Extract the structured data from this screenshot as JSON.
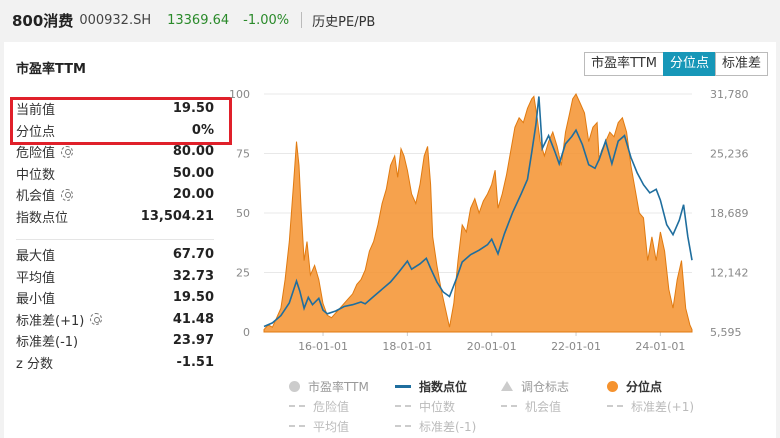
{
  "header": {
    "index_name": "800消费",
    "index_code": "000932.SH",
    "price": "13369.64",
    "change": "-1.00%",
    "history_link": "历史PE/PB"
  },
  "card": {
    "title": "市盈率TTM",
    "tabs": [
      {
        "label": "市盈率TTM",
        "active": false
      },
      {
        "label": "分位点",
        "active": true
      },
      {
        "label": "标准差",
        "active": false
      }
    ]
  },
  "stats": {
    "group1": [
      {
        "label": "当前值",
        "value": "19.50",
        "icon": ""
      },
      {
        "label": "分位点",
        "value": "0%",
        "icon": ""
      },
      {
        "label": "危险值",
        "value": "80.00",
        "icon": "gear-icon"
      },
      {
        "label": "中位数",
        "value": "50.00",
        "icon": ""
      },
      {
        "label": "机会值",
        "value": "20.00",
        "icon": "gear-icon"
      },
      {
        "label": "指数点位",
        "value": "13,504.21",
        "icon": ""
      }
    ],
    "group2": [
      {
        "label": "最大值",
        "value": "67.70",
        "icon": ""
      },
      {
        "label": "平均值",
        "value": "32.73",
        "icon": ""
      },
      {
        "label": "最小值",
        "value": "19.50",
        "icon": ""
      },
      {
        "label": "标准差(+1)",
        "value": "41.48",
        "icon": "gear-icon"
      },
      {
        "label": "标准差(-1)",
        "value": "23.97",
        "icon": ""
      },
      {
        "label": "z 分数",
        "value": "-1.51",
        "icon": ""
      }
    ]
  },
  "chart_data": {
    "type": "area",
    "x_ticks": [
      "16-01-01",
      "18-01-01",
      "20-01-01",
      "22-01-01",
      "24-01-01"
    ],
    "x_range": [
      2014.6,
      2024.75
    ],
    "y_left_ticks": [
      "0",
      "25",
      "50",
      "75",
      "100"
    ],
    "y_left_range": [
      0,
      100
    ],
    "y_right_ticks": [
      "5,595",
      "12,142",
      "18,689",
      "25,236",
      "31,780"
    ],
    "y_right_range": [
      5595,
      31780
    ],
    "grid": true,
    "series": [
      {
        "name": "分位点",
        "axis": "left",
        "style": "area",
        "color": "#f5922e",
        "points": [
          [
            2014.6,
            1
          ],
          [
            2014.7,
            3
          ],
          [
            2014.8,
            2
          ],
          [
            2014.9,
            6
          ],
          [
            2015.0,
            10
          ],
          [
            2015.1,
            22
          ],
          [
            2015.2,
            38
          ],
          [
            2015.3,
            62
          ],
          [
            2015.37,
            80
          ],
          [
            2015.43,
            70
          ],
          [
            2015.48,
            52
          ],
          [
            2015.55,
            30
          ],
          [
            2015.62,
            38
          ],
          [
            2015.7,
            24
          ],
          [
            2015.8,
            28
          ],
          [
            2015.9,
            22
          ],
          [
            2016.0,
            12
          ],
          [
            2016.1,
            7
          ],
          [
            2016.2,
            6
          ],
          [
            2016.3,
            8
          ],
          [
            2016.4,
            10
          ],
          [
            2016.5,
            12
          ],
          [
            2016.6,
            14
          ],
          [
            2016.7,
            16
          ],
          [
            2016.8,
            20
          ],
          [
            2016.9,
            22
          ],
          [
            2017.0,
            26
          ],
          [
            2017.1,
            34
          ],
          [
            2017.2,
            38
          ],
          [
            2017.3,
            45
          ],
          [
            2017.4,
            54
          ],
          [
            2017.5,
            60
          ],
          [
            2017.6,
            70
          ],
          [
            2017.7,
            74
          ],
          [
            2017.77,
            65
          ],
          [
            2017.85,
            77
          ],
          [
            2017.92,
            74
          ],
          [
            2018.0,
            68
          ],
          [
            2018.1,
            58
          ],
          [
            2018.2,
            54
          ],
          [
            2018.3,
            62
          ],
          [
            2018.4,
            74
          ],
          [
            2018.48,
            78
          ],
          [
            2018.55,
            62
          ],
          [
            2018.6,
            40
          ],
          [
            2018.7,
            28
          ],
          [
            2018.8,
            18
          ],
          [
            2018.9,
            10
          ],
          [
            2019.0,
            2
          ],
          [
            2019.1,
            12
          ],
          [
            2019.2,
            30
          ],
          [
            2019.3,
            45
          ],
          [
            2019.4,
            42
          ],
          [
            2019.5,
            52
          ],
          [
            2019.6,
            56
          ],
          [
            2019.7,
            50
          ],
          [
            2019.8,
            55
          ],
          [
            2019.9,
            58
          ],
          [
            2020.0,
            62
          ],
          [
            2020.08,
            68
          ],
          [
            2020.15,
            52
          ],
          [
            2020.25,
            58
          ],
          [
            2020.35,
            66
          ],
          [
            2020.45,
            76
          ],
          [
            2020.55,
            86
          ],
          [
            2020.65,
            90
          ],
          [
            2020.75,
            88
          ],
          [
            2020.85,
            94
          ],
          [
            2020.95,
            98
          ],
          [
            2021.0,
            99
          ],
          [
            2021.08,
            90
          ],
          [
            2021.15,
            80
          ],
          [
            2021.25,
            74
          ],
          [
            2021.35,
            80
          ],
          [
            2021.45,
            84
          ],
          [
            2021.55,
            78
          ],
          [
            2021.65,
            70
          ],
          [
            2021.75,
            84
          ],
          [
            2021.85,
            92
          ],
          [
            2021.92,
            98
          ],
          [
            2022.0,
            100
          ],
          [
            2022.1,
            96
          ],
          [
            2022.2,
            92
          ],
          [
            2022.3,
            80
          ],
          [
            2022.4,
            86
          ],
          [
            2022.5,
            88
          ],
          [
            2022.55,
            72
          ],
          [
            2022.6,
            76
          ],
          [
            2022.7,
            80
          ],
          [
            2022.8,
            84
          ],
          [
            2022.9,
            82
          ],
          [
            2023.0,
            88
          ],
          [
            2023.1,
            90
          ],
          [
            2023.2,
            84
          ],
          [
            2023.3,
            70
          ],
          [
            2023.4,
            60
          ],
          [
            2023.5,
            50
          ],
          [
            2023.6,
            48
          ],
          [
            2023.7,
            30
          ],
          [
            2023.8,
            40
          ],
          [
            2023.9,
            30
          ],
          [
            2024.0,
            42
          ],
          [
            2024.1,
            34
          ],
          [
            2024.2,
            18
          ],
          [
            2024.3,
            10
          ],
          [
            2024.4,
            22
          ],
          [
            2024.5,
            30
          ],
          [
            2024.6,
            10
          ],
          [
            2024.7,
            3
          ],
          [
            2024.75,
            1
          ]
        ]
      },
      {
        "name": "指数点位",
        "axis": "right",
        "style": "line",
        "color": "#1f6e9e",
        "points": [
          [
            2014.6,
            6200
          ],
          [
            2014.8,
            6600
          ],
          [
            2015.0,
            7400
          ],
          [
            2015.2,
            8800
          ],
          [
            2015.37,
            11200
          ],
          [
            2015.45,
            10100
          ],
          [
            2015.55,
            8200
          ],
          [
            2015.65,
            9400
          ],
          [
            2015.75,
            8600
          ],
          [
            2015.9,
            9300
          ],
          [
            2016.0,
            8000
          ],
          [
            2016.1,
            7600
          ],
          [
            2016.3,
            7900
          ],
          [
            2016.5,
            8400
          ],
          [
            2016.7,
            8600
          ],
          [
            2016.9,
            8900
          ],
          [
            2017.0,
            8700
          ],
          [
            2017.2,
            9500
          ],
          [
            2017.4,
            10300
          ],
          [
            2017.6,
            11100
          ],
          [
            2017.8,
            12200
          ],
          [
            2018.0,
            13400
          ],
          [
            2018.1,
            12500
          ],
          [
            2018.3,
            13100
          ],
          [
            2018.45,
            13700
          ],
          [
            2018.55,
            12600
          ],
          [
            2018.7,
            11100
          ],
          [
            2018.85,
            10000
          ],
          [
            2019.0,
            9500
          ],
          [
            2019.15,
            11300
          ],
          [
            2019.3,
            13300
          ],
          [
            2019.5,
            14100
          ],
          [
            2019.7,
            14600
          ],
          [
            2019.9,
            15200
          ],
          [
            2020.0,
            15800
          ],
          [
            2020.15,
            14200
          ],
          [
            2020.3,
            16400
          ],
          [
            2020.5,
            18800
          ],
          [
            2020.7,
            20800
          ],
          [
            2020.85,
            22400
          ],
          [
            2020.95,
            25400
          ],
          [
            2021.05,
            28500
          ],
          [
            2021.12,
            31500
          ],
          [
            2021.2,
            25800
          ],
          [
            2021.35,
            27200
          ],
          [
            2021.5,
            25400
          ],
          [
            2021.6,
            24100
          ],
          [
            2021.75,
            26300
          ],
          [
            2021.9,
            27100
          ],
          [
            2022.0,
            27800
          ],
          [
            2022.15,
            26200
          ],
          [
            2022.3,
            24000
          ],
          [
            2022.45,
            23600
          ],
          [
            2022.55,
            24600
          ],
          [
            2022.7,
            26600
          ],
          [
            2022.85,
            24100
          ],
          [
            2023.0,
            26600
          ],
          [
            2023.15,
            27200
          ],
          [
            2023.3,
            24800
          ],
          [
            2023.45,
            23100
          ],
          [
            2023.6,
            21800
          ],
          [
            2023.75,
            20900
          ],
          [
            2023.9,
            21300
          ],
          [
            2024.0,
            20100
          ],
          [
            2024.15,
            17400
          ],
          [
            2024.3,
            16300
          ],
          [
            2024.45,
            17900
          ],
          [
            2024.55,
            19600
          ],
          [
            2024.65,
            16100
          ],
          [
            2024.75,
            13500
          ]
        ]
      }
    ]
  },
  "legend": [
    [
      {
        "label": "市盈率TTM",
        "symbol": "dot",
        "color": "#cccccc",
        "state": "off"
      },
      {
        "label": "指数点位",
        "symbol": "line",
        "color": "#1f6e9e",
        "state": "on"
      },
      {
        "label": "调仓标志",
        "symbol": "triangle",
        "color": "#cccccc",
        "state": "off"
      },
      {
        "label": "分位点",
        "symbol": "dot",
        "color": "#f5922e",
        "state": "on"
      }
    ],
    [
      {
        "label": "危险值",
        "symbol": "dash",
        "color": "#cccccc",
        "state": "dim"
      },
      {
        "label": "中位数",
        "symbol": "dash",
        "color": "#cccccc",
        "state": "dim"
      },
      {
        "label": "机会值",
        "symbol": "dash",
        "color": "#cccccc",
        "state": "dim"
      },
      {
        "label": "标准差(+1)",
        "symbol": "dash",
        "color": "#cccccc",
        "state": "dim"
      }
    ],
    [
      {
        "label": "平均值",
        "symbol": "dash",
        "color": "#cccccc",
        "state": "dim"
      },
      {
        "label": "标准差(-1)",
        "symbol": "dash",
        "color": "#cccccc",
        "state": "dim"
      }
    ]
  ]
}
